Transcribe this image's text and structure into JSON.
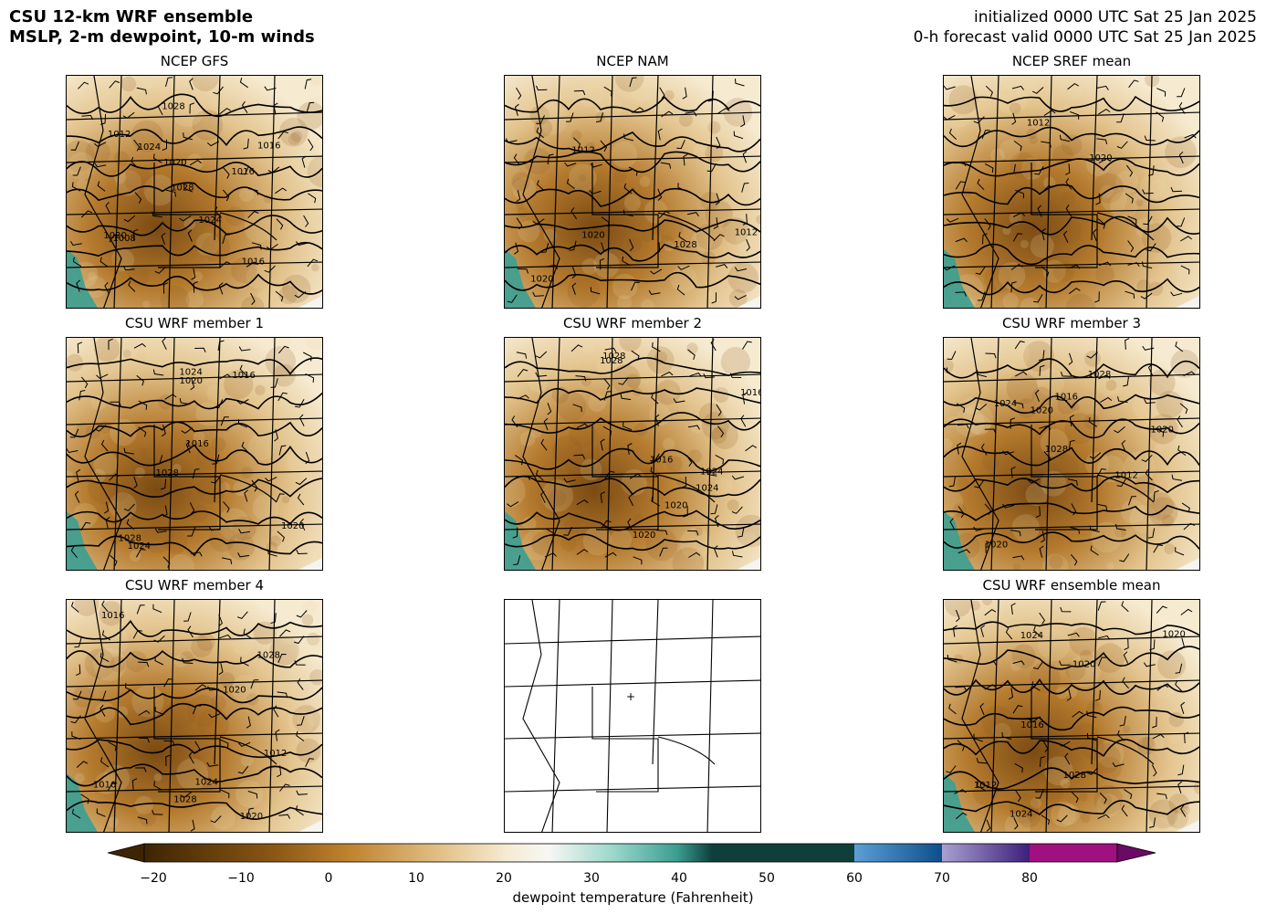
{
  "header": {
    "title_line1": "CSU 12-km WRF ensemble",
    "title_line2": "MSLP, 2-m dewpoint, 10-m winds",
    "init_line": "initialized 0000 UTC Sat 25 Jan 2025",
    "valid_line": "0-h forecast valid 0000 UTC Sat 25 Jan 2025"
  },
  "panels": [
    {
      "title": "NCEP GFS",
      "contours": [
        "1024",
        "1028",
        "1016",
        "1020",
        "1012",
        "1016",
        "1020",
        "1024",
        "1028",
        "1016",
        "1008"
      ]
    },
    {
      "title": "NCEP NAM",
      "contours": [
        "1020",
        "1012",
        "1020",
        "1028",
        "1012"
      ]
    },
    {
      "title": "NCEP SREF mean",
      "contours": [
        "1012",
        "1020"
      ]
    },
    {
      "title": "CSU WRF member 1",
      "contours": [
        "1028",
        "1024",
        "1016",
        "1020",
        "1016",
        "1020",
        "1024",
        "1028"
      ]
    },
    {
      "title": "CSU WRF member 2",
      "contours": [
        "1028",
        "1024",
        "1016",
        "1020",
        "1016",
        "1020",
        "1024",
        "1028"
      ]
    },
    {
      "title": "CSU WRF member 3",
      "contours": [
        "1028",
        "1016",
        "1020",
        "1020",
        "1012",
        "1020",
        "1024",
        "1028"
      ]
    },
    {
      "title": "CSU WRF member 4",
      "contours": [
        "1028",
        "1016",
        "1020",
        "1020",
        "1012",
        "1016",
        "1024",
        "1028"
      ]
    },
    {
      "title": "",
      "contours": []
    },
    {
      "title": "CSU WRF ensemble mean",
      "contours": [
        "1028",
        "1024",
        "1016",
        "1020",
        "1012",
        "1020",
        "1024"
      ]
    }
  ],
  "colorbar": {
    "label": "dewpoint temperature (Fahrenheit)",
    "ticks": [
      "−20",
      "−10",
      "0",
      "10",
      "20",
      "30",
      "40",
      "50",
      "60",
      "70",
      "80"
    ],
    "colors": {
      "dark_brown": "#3d2403",
      "brown": "#b8792a",
      "tan": "#f2ddb2",
      "white": "#f7f7f4",
      "teal": "#39a596",
      "dark_teal": "#0f3f3b",
      "blue": "#1f6fb0",
      "purple": "#5b3a91",
      "magenta": "#a01080"
    }
  }
}
